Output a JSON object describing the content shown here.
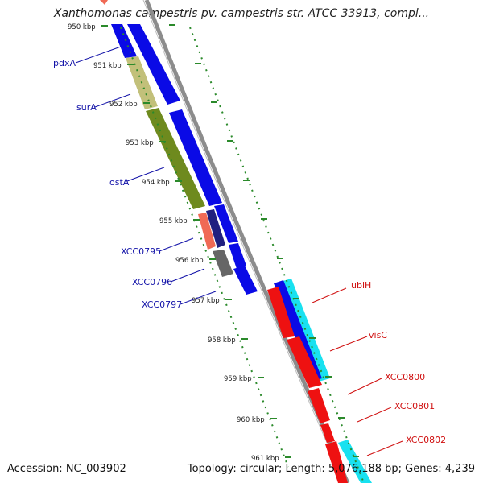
{
  "title": "Xanthomonas campestris pv. campestris str. ATCC 33913, compl...",
  "footer": {
    "accession": "Accession: NC_003902",
    "topology": "Topology: circular; Length: 5,076,188 bp; Genes: 4,239"
  },
  "ruler": {
    "ticks": [
      "950 kbp",
      "951 kbp",
      "952 kbp",
      "953 kbp",
      "954 kbp",
      "955 kbp",
      "956 kbp",
      "957 kbp",
      "958 kbp",
      "959 kbp",
      "960 kbp",
      "961 kbp"
    ]
  },
  "left_labels": [
    "pdxA",
    "surA",
    "ostA",
    "XCC0795",
    "XCC0796",
    "XCC0797"
  ],
  "right_labels": [
    "ubiH",
    "visC",
    "XCC0800",
    "XCC0801",
    "XCC0802"
  ],
  "colors": {
    "cds_blue": "#0a0ae6",
    "cds_red": "#ee1111",
    "cds_cyan": "#19e1f0",
    "olive": "#6e8a1e",
    "khaki": "#c2c07a",
    "salmon": "#f06a55",
    "navy": "#202080",
    "grey": "#666666",
    "backbone": "#8c8c8c",
    "ruler_green": "#2b8a2b",
    "left_label": "#1212a8",
    "right_label": "#d01010"
  }
}
